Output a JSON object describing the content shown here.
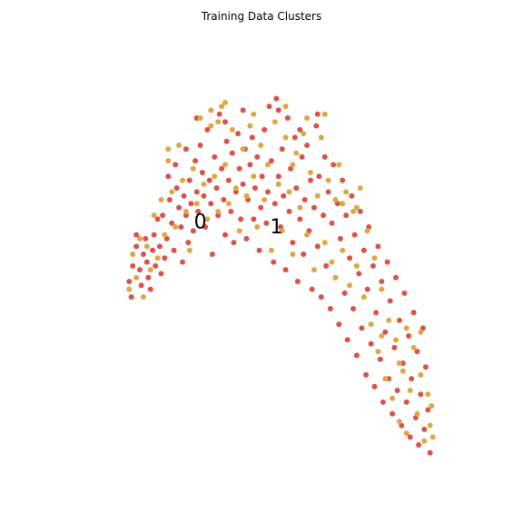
{
  "chart_data": {
    "type": "scatter",
    "title": "Training Data Clusters",
    "xlabel": "",
    "ylabel": "",
    "axes_visible": false,
    "grid": false,
    "xlim": [
      -3.0,
      3.0
    ],
    "ylim": [
      -3.2,
      2.4
    ],
    "colors": {
      "red": "#d9534a",
      "gold": "#dca847"
    },
    "cluster_labels": [
      {
        "text": "0",
        "x": -0.95,
        "y": 0.0
      },
      {
        "text": "1",
        "x": 0.12,
        "y": -0.06
      }
    ],
    "series": [
      {
        "color": "#d9534a",
        "points": [
          [
            -1.95,
            -0.75
          ],
          [
            -1.92,
            -0.95
          ],
          [
            -1.9,
            -0.55
          ],
          [
            -1.85,
            -0.3
          ],
          [
            -1.8,
            -0.6
          ],
          [
            -1.78,
            -0.8
          ],
          [
            -1.75,
            -0.4
          ],
          [
            -1.72,
            -0.2
          ],
          [
            -1.7,
            -0.5
          ],
          [
            -1.68,
            -0.7
          ],
          [
            -1.65,
            -0.85
          ],
          [
            -1.62,
            -0.35
          ],
          [
            -1.6,
            -0.15
          ],
          [
            -1.58,
            -0.55
          ],
          [
            -1.55,
            0.05
          ],
          [
            -1.52,
            -0.3
          ],
          [
            -1.5,
            -0.65
          ],
          [
            -1.48,
            0.1
          ],
          [
            -1.45,
            -0.45
          ],
          [
            -1.42,
            -0.2
          ],
          [
            -1.4,
            0.6
          ],
          [
            -1.38,
            0.3
          ],
          [
            -1.35,
            0.0
          ],
          [
            -1.32,
            -0.35
          ],
          [
            -1.3,
            0.75
          ],
          [
            -1.28,
            0.45
          ],
          [
            -1.25,
            0.2
          ],
          [
            -1.22,
            -0.05
          ],
          [
            -1.2,
            -0.5
          ],
          [
            -1.18,
            0.35
          ],
          [
            -1.15,
            0.1
          ],
          [
            -1.12,
            -0.25
          ],
          [
            -1.1,
            0.55
          ],
          [
            -1.08,
            0.25
          ],
          [
            -1.05,
            -0.1
          ],
          [
            -1.02,
            0.8
          ],
          [
            -1.0,
            0.4
          ],
          [
            -0.98,
            0.15
          ],
          [
            -0.95,
            1.0
          ],
          [
            -0.92,
            0.65
          ],
          [
            -0.9,
            0.35
          ],
          [
            -0.88,
            -0.05
          ],
          [
            -0.85,
            1.2
          ],
          [
            -0.82,
            0.55
          ],
          [
            -0.8,
            0.25
          ],
          [
            -0.78,
            -0.4
          ],
          [
            -0.75,
            0.85
          ],
          [
            -0.72,
            0.45
          ],
          [
            -0.7,
            0.1
          ],
          [
            -0.68,
            1.4
          ],
          [
            -0.65,
            0.7
          ],
          [
            -0.62,
            0.3
          ],
          [
            -0.6,
            -0.15
          ],
          [
            -0.58,
            1.05
          ],
          [
            -0.55,
            0.55
          ],
          [
            -0.52,
            0.15
          ],
          [
            -0.5,
            0.9
          ],
          [
            -0.48,
            -0.25
          ],
          [
            -0.45,
            0.4
          ],
          [
            -0.42,
            1.15
          ],
          [
            -0.4,
            0.7
          ],
          [
            -0.38,
            0.05
          ],
          [
            -0.35,
            0.5
          ],
          [
            -0.32,
            0.95
          ],
          [
            -0.3,
            -0.2
          ],
          [
            -0.28,
            0.3
          ],
          [
            -0.25,
            0.75
          ],
          [
            -0.22,
            1.1
          ],
          [
            -0.2,
            0.05
          ],
          [
            -0.18,
            0.45
          ],
          [
            -0.15,
            0.85
          ],
          [
            -0.12,
            -0.35
          ],
          [
            -0.1,
            0.2
          ],
          [
            -0.08,
            0.6
          ],
          [
            -0.05,
            1.2
          ],
          [
            -0.02,
            0.0
          ],
          [
            0.0,
            0.4
          ],
          [
            0.02,
            1.5
          ],
          [
            0.05,
            0.8
          ],
          [
            0.08,
            -0.5
          ],
          [
            0.1,
            0.25
          ],
          [
            0.12,
            1.6
          ],
          [
            0.15,
            0.6
          ],
          [
            0.18,
            -0.05
          ],
          [
            0.2,
            0.95
          ],
          [
            0.22,
            0.35
          ],
          [
            0.25,
            -0.6
          ],
          [
            0.28,
            1.35
          ],
          [
            0.3,
            0.15
          ],
          [
            0.32,
            0.7
          ],
          [
            0.35,
            -0.25
          ],
          [
            0.38,
            1.1
          ],
          [
            0.4,
            0.45
          ],
          [
            0.42,
            -0.75
          ],
          [
            0.45,
            0.05
          ],
          [
            0.48,
            0.85
          ],
          [
            0.5,
            -0.4
          ],
          [
            0.52,
            0.3
          ],
          [
            0.55,
            1.0
          ],
          [
            0.58,
            -0.1
          ],
          [
            0.6,
            0.55
          ],
          [
            0.62,
            -0.85
          ],
          [
            0.65,
            0.2
          ],
          [
            0.68,
            1.25
          ],
          [
            0.7,
            -0.3
          ],
          [
            0.72,
            0.6
          ],
          [
            0.75,
            -0.95
          ],
          [
            0.78,
            0.1
          ],
          [
            0.8,
            0.85
          ],
          [
            0.82,
            -0.55
          ],
          [
            0.85,
            0.4
          ],
          [
            0.88,
            -1.1
          ],
          [
            0.9,
            0.0
          ],
          [
            0.92,
            0.75
          ],
          [
            0.95,
            -0.7
          ],
          [
            0.98,
            0.25
          ],
          [
            1.0,
            -1.3
          ],
          [
            1.02,
            -0.2
          ],
          [
            1.05,
            0.55
          ],
          [
            1.08,
            -0.9
          ],
          [
            1.1,
            0.1
          ],
          [
            1.12,
            -1.5
          ],
          [
            1.15,
            -0.45
          ],
          [
            1.18,
            0.35
          ],
          [
            1.2,
            -1.1
          ],
          [
            1.22,
            -0.15
          ],
          [
            1.25,
            -1.7
          ],
          [
            1.28,
            -0.65
          ],
          [
            1.3,
            0.15
          ],
          [
            1.32,
            -1.35
          ],
          [
            1.35,
            -0.35
          ],
          [
            1.38,
            -1.95
          ],
          [
            1.4,
            -0.85
          ],
          [
            1.42,
            -0.05
          ],
          [
            1.45,
            -1.55
          ],
          [
            1.48,
            -0.55
          ],
          [
            1.5,
            -2.1
          ],
          [
            1.52,
            -1.15
          ],
          [
            1.55,
            -0.3
          ],
          [
            1.58,
            -1.75
          ],
          [
            1.6,
            -0.75
          ],
          [
            1.62,
            -2.3
          ],
          [
            1.65,
            -1.4
          ],
          [
            1.68,
            -0.5
          ],
          [
            1.7,
            -2.0
          ],
          [
            1.72,
            -1.0
          ],
          [
            1.75,
            -2.45
          ],
          [
            1.78,
            -1.6
          ],
          [
            1.8,
            -0.7
          ],
          [
            1.82,
            -2.15
          ],
          [
            1.85,
            -1.25
          ],
          [
            1.88,
            -2.6
          ],
          [
            1.9,
            -1.8
          ],
          [
            1.92,
            -0.9
          ],
          [
            1.95,
            -2.3
          ],
          [
            1.98,
            -1.45
          ],
          [
            2.0,
            -2.75
          ],
          [
            2.02,
            -2.0
          ],
          [
            2.05,
            -1.15
          ],
          [
            2.08,
            -2.5
          ],
          [
            2.1,
            -1.65
          ],
          [
            2.12,
            -2.85
          ],
          [
            2.15,
            -2.2
          ],
          [
            2.18,
            -1.35
          ],
          [
            2.2,
            -2.65
          ],
          [
            2.22,
            -1.85
          ],
          [
            2.25,
            -2.4
          ],
          [
            2.28,
            -2.95
          ],
          [
            -1.0,
            1.35
          ],
          [
            -0.35,
            1.45
          ],
          [
            0.15,
            1.45
          ],
          [
            0.45,
            1.2
          ],
          [
            -0.6,
            1.3
          ],
          [
            0.7,
            1.4
          ],
          [
            -1.85,
            -0.15
          ],
          [
            -1.15,
            0.95
          ]
        ]
      },
      {
        "color": "#dca847",
        "points": [
          [
            -1.95,
            -0.85
          ],
          [
            -1.9,
            -0.4
          ],
          [
            -1.85,
            -0.7
          ],
          [
            -1.8,
            -0.2
          ],
          [
            -1.75,
            -0.95
          ],
          [
            -1.7,
            -0.3
          ],
          [
            -1.65,
            -0.6
          ],
          [
            -1.6,
            0.1
          ],
          [
            -1.55,
            -0.45
          ],
          [
            -1.5,
            0.3
          ],
          [
            -1.45,
            -0.15
          ],
          [
            -1.4,
            0.95
          ],
          [
            -1.35,
            0.4
          ],
          [
            -1.3,
            -0.05
          ],
          [
            -1.25,
            1.0
          ],
          [
            -1.2,
            0.55
          ],
          [
            -1.15,
            0.15
          ],
          [
            -1.1,
            -0.35
          ],
          [
            -1.05,
            0.7
          ],
          [
            -1.0,
            0.25
          ],
          [
            -0.95,
            1.35
          ],
          [
            -0.9,
            0.5
          ],
          [
            -0.85,
            0.05
          ],
          [
            -0.8,
            1.25
          ],
          [
            -0.75,
            0.6
          ],
          [
            -0.7,
            0.15
          ],
          [
            -0.65,
            1.5
          ],
          [
            -0.6,
            0.75
          ],
          [
            -0.55,
            0.25
          ],
          [
            -0.5,
            1.2
          ],
          [
            -0.45,
            0.45
          ],
          [
            -0.4,
            -0.1
          ],
          [
            -0.35,
            0.95
          ],
          [
            -0.3,
            0.35
          ],
          [
            -0.25,
            1.25
          ],
          [
            -0.2,
            0.6
          ],
          [
            -0.15,
            -0.05
          ],
          [
            -0.1,
            1.0
          ],
          [
            -0.05,
            0.3
          ],
          [
            0.0,
            0.75
          ],
          [
            0.05,
            -0.35
          ],
          [
            0.1,
            1.3
          ],
          [
            0.15,
            0.5
          ],
          [
            0.2,
            -0.1
          ],
          [
            0.25,
            1.1
          ],
          [
            0.3,
            0.4
          ],
          [
            0.35,
            -0.4
          ],
          [
            0.4,
            0.9
          ],
          [
            0.45,
            0.2
          ],
          [
            0.5,
            1.15
          ],
          [
            0.55,
            -0.15
          ],
          [
            0.6,
            0.65
          ],
          [
            0.65,
            -0.6
          ],
          [
            0.7,
            0.35
          ],
          [
            0.75,
            1.1
          ],
          [
            0.8,
            -0.25
          ],
          [
            0.85,
            0.55
          ],
          [
            0.9,
            -0.5
          ],
          [
            0.95,
            0.3
          ],
          [
            1.0,
            0.75
          ],
          [
            1.05,
            -0.35
          ],
          [
            1.1,
            0.4
          ],
          [
            1.15,
            -0.8
          ],
          [
            1.2,
            0.15
          ],
          [
            1.25,
            -0.55
          ],
          [
            1.3,
            0.45
          ],
          [
            1.35,
            -0.95
          ],
          [
            1.4,
            -0.1
          ],
          [
            1.45,
            -1.3
          ],
          [
            1.5,
            -0.45
          ],
          [
            1.55,
            -1.65
          ],
          [
            1.6,
            -0.85
          ],
          [
            1.65,
            -2.0
          ],
          [
            1.7,
            -1.25
          ],
          [
            1.75,
            -2.25
          ],
          [
            1.8,
            -1.5
          ],
          [
            1.85,
            -2.55
          ],
          [
            1.9,
            -1.9
          ],
          [
            1.95,
            -2.7
          ],
          [
            2.0,
            -2.15
          ],
          [
            2.05,
            -1.6
          ],
          [
            2.1,
            -2.45
          ],
          [
            2.15,
            -1.95
          ],
          [
            2.2,
            -2.8
          ],
          [
            2.25,
            -2.2
          ],
          [
            2.28,
            -2.6
          ],
          [
            2.3,
            -2.35
          ],
          [
            2.32,
            -2.75
          ],
          [
            -0.6,
            1.55
          ],
          [
            -0.2,
            1.4
          ],
          [
            0.25,
            1.5
          ],
          [
            0.55,
            1.35
          ],
          [
            -0.8,
            1.45
          ],
          [
            0.8,
            1.4
          ],
          [
            1.05,
            0.25
          ],
          [
            0.95,
            -0.7
          ],
          [
            -1.4,
            0.8
          ],
          [
            -0.7,
            1.3
          ],
          [
            0.35,
            0.75
          ],
          [
            1.25,
            0.2
          ],
          [
            1.95,
            -1.35
          ],
          [
            2.15,
            -1.4
          ],
          [
            1.6,
            -1.45
          ],
          [
            1.85,
            -1.8
          ]
        ]
      }
    ]
  }
}
